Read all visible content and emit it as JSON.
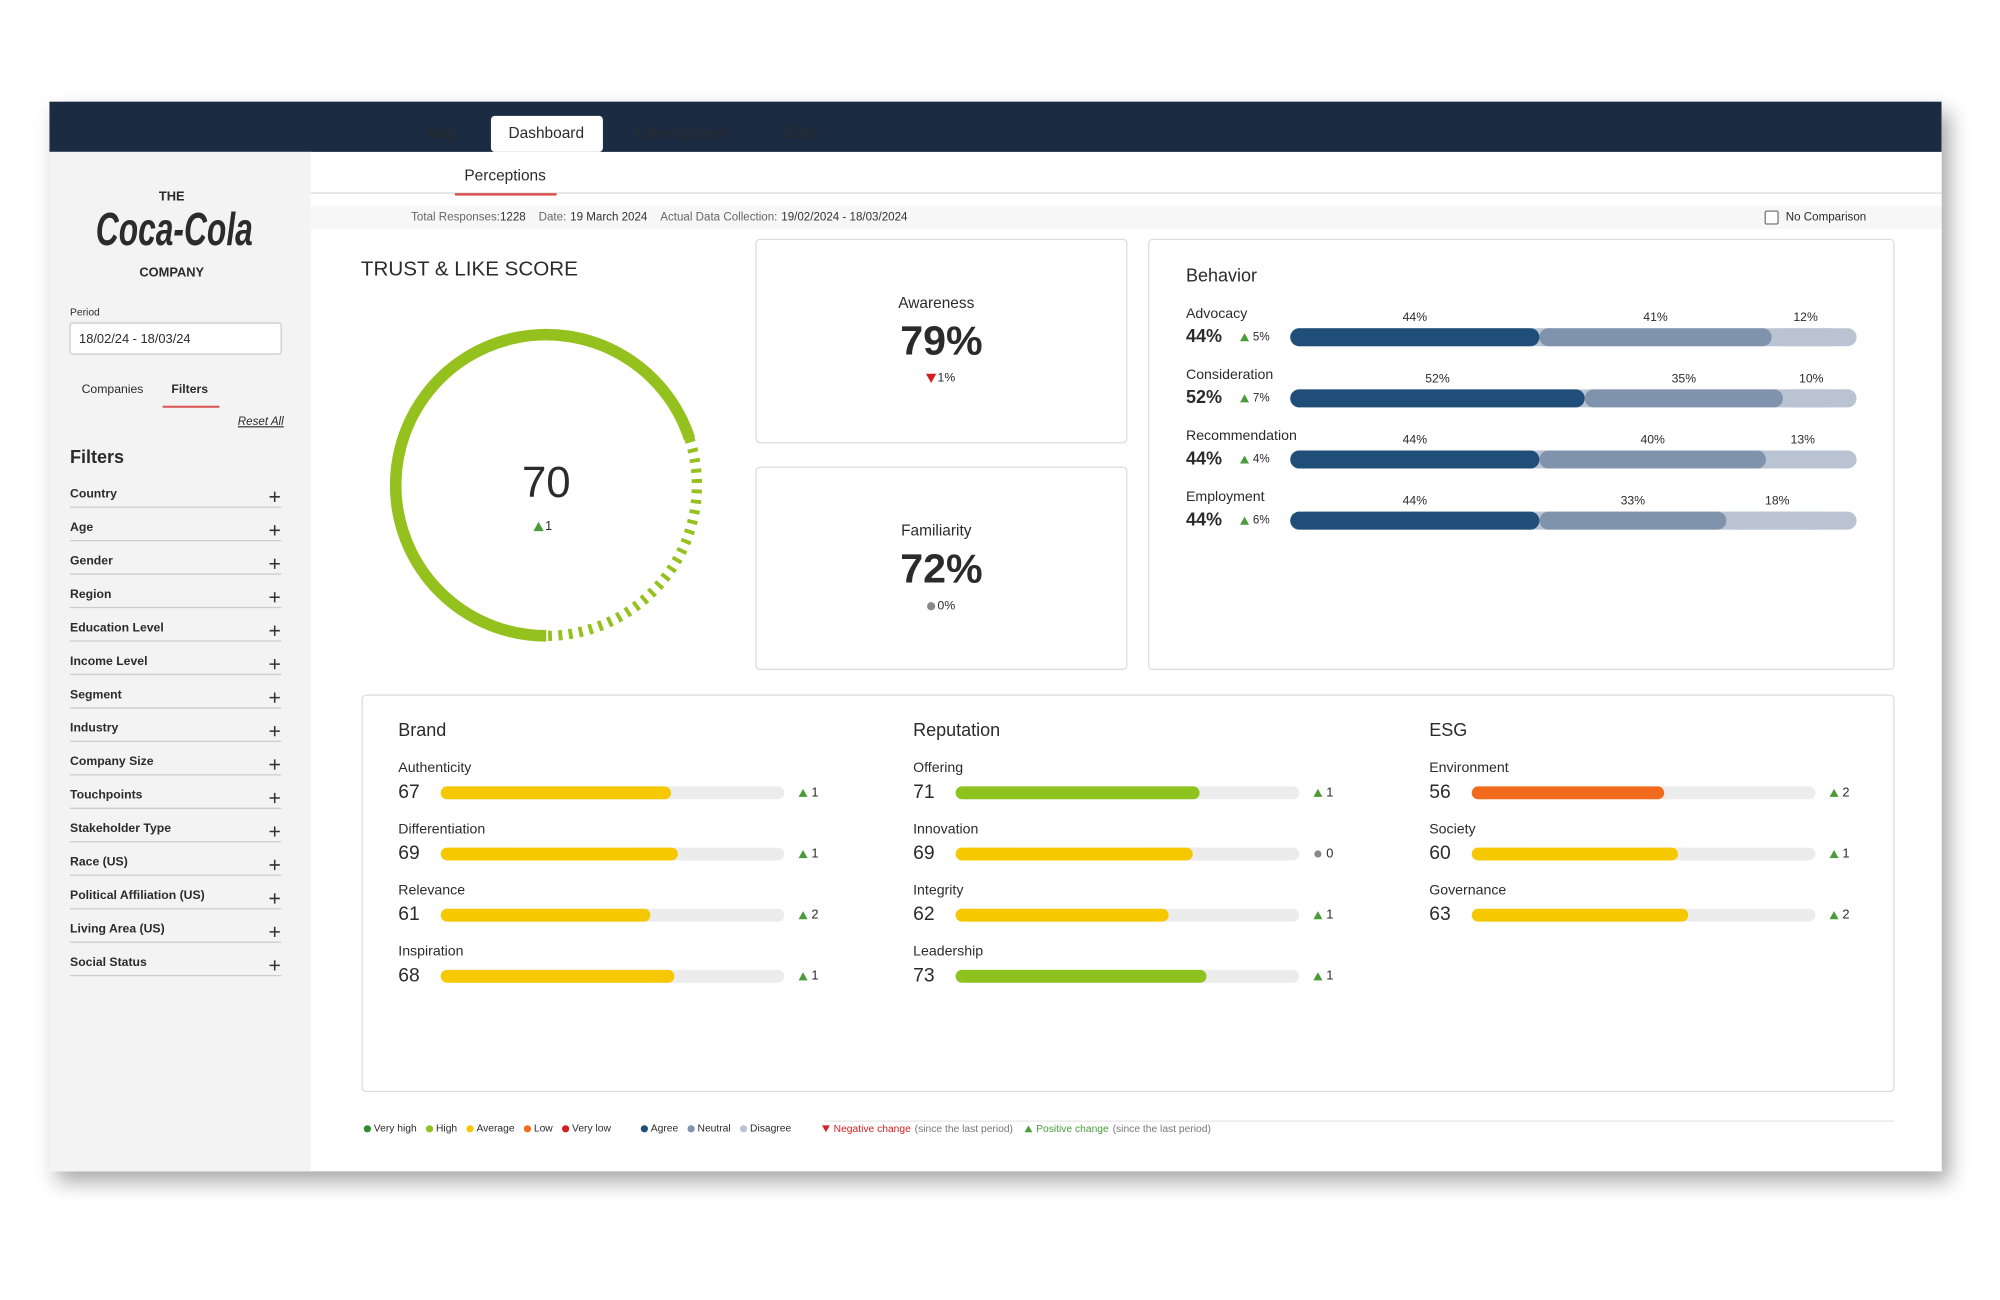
{
  "nav": {
    "tabs": [
      "Map",
      "Dashboard",
      "Development",
      "Table"
    ],
    "active": 1
  },
  "subnav": {
    "tab": "Perceptions"
  },
  "info": {
    "responses_label": "Total Responses:",
    "responses": "1228",
    "date_label": "Date:",
    "date": "19 March 2024",
    "collection_label": "Actual Data Collection:",
    "collection": "19/02/2024 - 18/03/2024",
    "comparison": "No Comparison"
  },
  "sidebar": {
    "logo": [
      "THE",
      "Coca-Cola",
      "COMPANY"
    ],
    "period_label": "Period",
    "period": "18/02/24 - 18/03/24",
    "tabs": [
      "Companies",
      "Filters"
    ],
    "active_tab": 1,
    "reset": "Reset All",
    "filters_title": "Filters",
    "filters": [
      "Country",
      "Age",
      "Gender",
      "Region",
      "Education Level",
      "Income Level",
      "Segment",
      "Industry",
      "Company Size",
      "Touchpoints",
      "Stakeholder Type",
      "Race (US)",
      "Political Affiliation (US)",
      "Living Area (US)",
      "Social Status"
    ]
  },
  "trust": {
    "title": "TRUST & LIKE SCORE",
    "score": 70,
    "lim": [
      0,
      100
    ],
    "change": "1",
    "trend": "up",
    "color": "#95c11f"
  },
  "kpis": [
    {
      "label": "Awareness",
      "value": "79%",
      "change": "1%",
      "trend": "down"
    },
    {
      "label": "Familiarity",
      "value": "72%",
      "change": "0%",
      "trend": "flat"
    }
  ],
  "behavior": {
    "title": "Behavior",
    "colors": [
      "#1f4e79",
      "#7f93ad",
      "#b9c3d1"
    ],
    "lim": [
      0,
      100
    ],
    "rows": [
      {
        "label": "Advocacy",
        "value": "44%",
        "change": "5%",
        "trend": "up",
        "segments": [
          44,
          41,
          12
        ],
        "segment_labels": [
          "44%",
          "41%",
          "12%"
        ]
      },
      {
        "label": "Consideration",
        "value": "52%",
        "change": "7%",
        "trend": "up",
        "segments": [
          52,
          35,
          10
        ],
        "segment_labels": [
          "52%",
          "35%",
          "10%"
        ]
      },
      {
        "label": "Recommendation",
        "value": "44%",
        "change": "4%",
        "trend": "up",
        "segments": [
          44,
          40,
          13
        ],
        "segment_labels": [
          "44%",
          "40%",
          "13%"
        ]
      },
      {
        "label": "Employment",
        "value": "44%",
        "change": "6%",
        "trend": "up",
        "segments": [
          44,
          33,
          18
        ],
        "segment_labels": [
          "44%",
          "33%",
          "18%"
        ]
      }
    ]
  },
  "scores": {
    "lim": [
      0,
      100
    ],
    "groups": [
      {
        "title": "Brand",
        "rows": [
          {
            "label": "Authenticity",
            "value": 67,
            "change": 1,
            "trend": "up",
            "color": "#f5c800"
          },
          {
            "label": "Differentiation",
            "value": 69,
            "change": 1,
            "trend": "up",
            "color": "#f5c800"
          },
          {
            "label": "Relevance",
            "value": 61,
            "change": 2,
            "trend": "up",
            "color": "#f5c800"
          },
          {
            "label": "Inspiration",
            "value": 68,
            "change": 1,
            "trend": "up",
            "color": "#f5c800"
          }
        ]
      },
      {
        "title": "Reputation",
        "rows": [
          {
            "label": "Offering",
            "value": 71,
            "change": 1,
            "trend": "up",
            "color": "#8dc21f"
          },
          {
            "label": "Innovation",
            "value": 69,
            "change": 0,
            "trend": "flat",
            "color": "#f5c800"
          },
          {
            "label": "Integrity",
            "value": 62,
            "change": 1,
            "trend": "up",
            "color": "#f5c800"
          },
          {
            "label": "Leadership",
            "value": 73,
            "change": 1,
            "trend": "up",
            "color": "#8dc21f"
          }
        ]
      },
      {
        "title": "ESG",
        "rows": [
          {
            "label": "Environment",
            "value": 56,
            "change": 2,
            "trend": "up",
            "color": "#f26a1b"
          },
          {
            "label": "Society",
            "value": 60,
            "change": 1,
            "trend": "up",
            "color": "#f5c800"
          },
          {
            "label": "Governance",
            "value": 63,
            "change": 2,
            "trend": "up",
            "color": "#f5c800"
          }
        ]
      }
    ]
  },
  "legend": {
    "levels": [
      {
        "name": "Very high",
        "color": "#2e8b2e"
      },
      {
        "name": "High",
        "color": "#8dc21f"
      },
      {
        "name": "Average",
        "color": "#f5c800"
      },
      {
        "name": "Low",
        "color": "#f26a1b"
      },
      {
        "name": "Very low",
        "color": "#d62020"
      }
    ],
    "responses": [
      {
        "name": "Agree",
        "color": "#1f4e79"
      },
      {
        "name": "Neutral",
        "color": "#7f93ad"
      },
      {
        "name": "Disagree",
        "color": "#b9c3d1"
      }
    ],
    "negative": "Negative change",
    "positive": "Positive change",
    "since": "(since the last period)"
  }
}
